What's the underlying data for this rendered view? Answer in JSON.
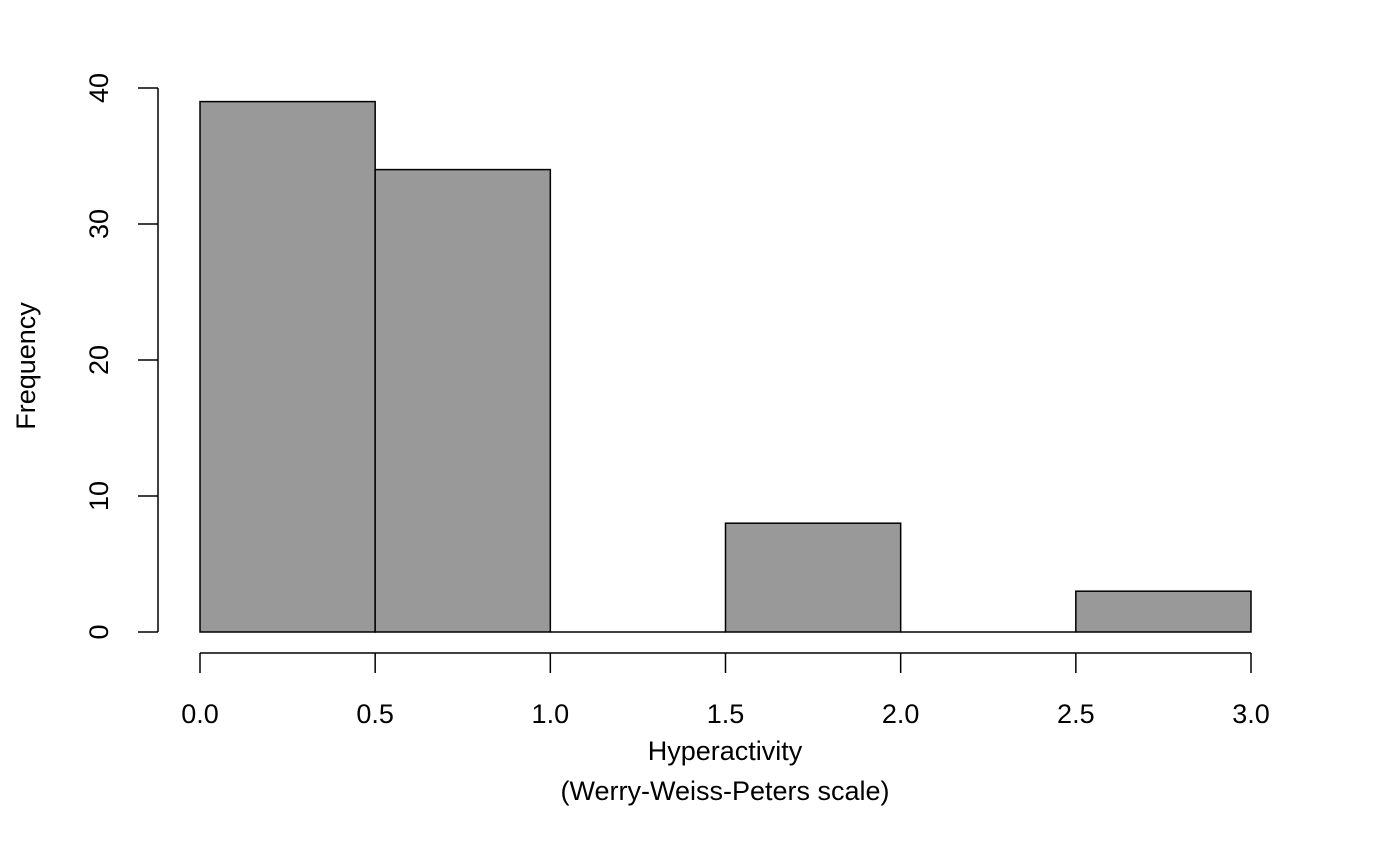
{
  "chart_data": {
    "type": "bar",
    "title": "",
    "xlabel": "Hyperactivity",
    "xlabel_line2": "(Werry-Weiss-Peters scale)",
    "ylabel": "Frequency",
    "bins": [
      {
        "start": 0.0,
        "end": 0.5,
        "count": 39
      },
      {
        "start": 0.5,
        "end": 1.0,
        "count": 34
      },
      {
        "start": 1.0,
        "end": 1.5,
        "count": 0
      },
      {
        "start": 1.5,
        "end": 2.0,
        "count": 8
      },
      {
        "start": 2.0,
        "end": 2.5,
        "count": 0
      },
      {
        "start": 2.5,
        "end": 3.0,
        "count": 3
      }
    ],
    "xlim": [
      0.0,
      3.0
    ],
    "ylim": [
      0,
      40
    ],
    "xticks": [
      "0.0",
      "0.5",
      "1.0",
      "1.5",
      "2.0",
      "2.5",
      "3.0"
    ],
    "yticks": [
      "0",
      "10",
      "20",
      "30",
      "40"
    ],
    "bar_color": "#999999",
    "grid": false
  }
}
